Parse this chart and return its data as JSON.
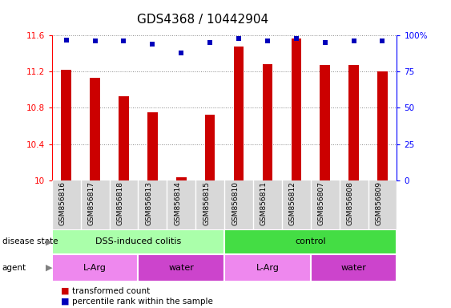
{
  "title": "GDS4368 / 10442904",
  "samples": [
    "GSM856816",
    "GSM856817",
    "GSM856818",
    "GSM856813",
    "GSM856814",
    "GSM856815",
    "GSM856810",
    "GSM856811",
    "GSM856812",
    "GSM856807",
    "GSM856808",
    "GSM856809"
  ],
  "red_values": [
    11.22,
    11.13,
    10.93,
    10.75,
    10.03,
    10.72,
    11.48,
    11.28,
    11.57,
    11.27,
    11.27,
    11.2
  ],
  "blue_values": [
    97,
    96,
    96,
    94,
    88,
    95,
    98,
    96,
    98,
    95,
    96,
    96
  ],
  "ylim_left": [
    10.0,
    11.6
  ],
  "ylim_right": [
    0,
    100
  ],
  "yticks_left": [
    10.0,
    10.4,
    10.8,
    11.2,
    11.6
  ],
  "ytick_labels_left": [
    "10",
    "10.4",
    "10.8",
    "11.2",
    "11.6"
  ],
  "yticks_right": [
    0,
    25,
    50,
    75,
    100
  ],
  "ytick_labels_right": [
    "0",
    "25",
    "50",
    "75",
    "100%"
  ],
  "disease_state_groups": [
    {
      "label": "DSS-induced colitis",
      "start": 0,
      "end": 6,
      "color": "#aaffaa"
    },
    {
      "label": "control",
      "start": 6,
      "end": 12,
      "color": "#44dd44"
    }
  ],
  "agent_groups": [
    {
      "label": "L-Arg",
      "start": 0,
      "end": 3,
      "color": "#ee88ee"
    },
    {
      "label": "water",
      "start": 3,
      "end": 6,
      "color": "#cc44cc"
    },
    {
      "label": "L-Arg",
      "start": 6,
      "end": 9,
      "color": "#ee88ee"
    },
    {
      "label": "water",
      "start": 9,
      "end": 12,
      "color": "#cc44cc"
    }
  ],
  "bar_color": "#cc0000",
  "dot_color": "#0000bb",
  "bar_width": 0.35,
  "grid_linestyle": ":",
  "grid_color": "#888888",
  "background_color": "#ffffff",
  "title_fontsize": 11,
  "tick_fontsize": 7.5,
  "sample_fontsize": 6.5,
  "label_fontsize": 8
}
